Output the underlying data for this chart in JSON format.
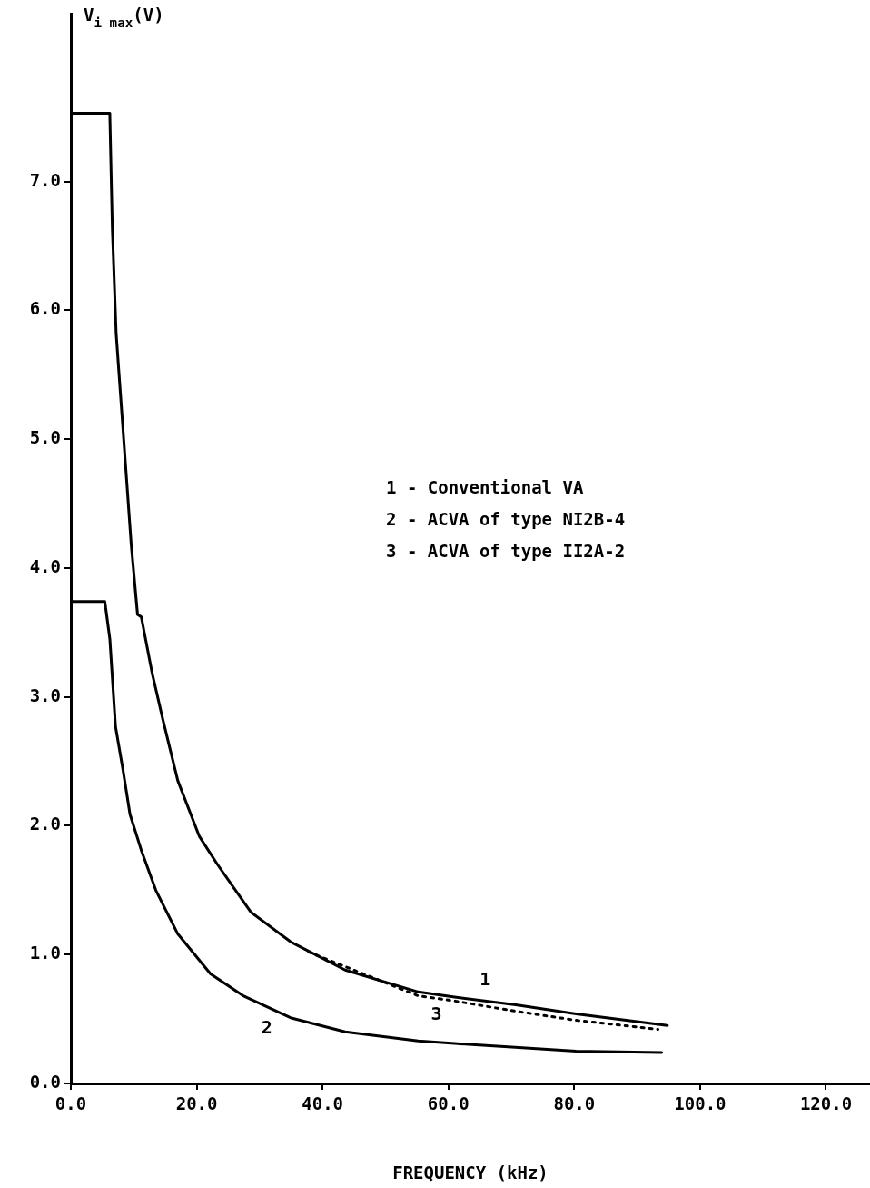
{
  "chart_data": {
    "type": "line",
    "xlabel": "FREQUENCY (kHz)",
    "ylabel": "V$_{i max}$(V)",
    "xlim": [
      0,
      127
    ],
    "xticks": [
      {
        "value": 0,
        "label": "0.0"
      },
      {
        "value": 20,
        "label": "20.0"
      },
      {
        "value": 40,
        "label": "40.0"
      },
      {
        "value": 60,
        "label": "60.0"
      },
      {
        "value": 80,
        "label": "80.0"
      },
      {
        "value": 100,
        "label": "100.0"
      },
      {
        "value": 120,
        "label": "120.0"
      }
    ],
    "ylim": [
      0,
      8.3
    ],
    "yticks": [
      {
        "value": 0,
        "label": "0.0"
      },
      {
        "value": 1,
        "label": "1.0"
      },
      {
        "value": 2,
        "label": "2.0"
      },
      {
        "value": 3,
        "label": "3.0"
      },
      {
        "value": 4,
        "label": "4.0"
      },
      {
        "value": 5,
        "label": "5.0"
      },
      {
        "value": 6,
        "label": "6.0"
      },
      {
        "value": 7,
        "label": "7.0"
      }
    ],
    "grid": false,
    "marker": "none",
    "series": [
      {
        "name": "1",
        "color": "#000000",
        "line_style": "solid",
        "x": [
          0,
          6.1,
          6.2,
          6.6,
          7.2,
          8.4,
          9.6,
          10.6,
          11.2,
          12.9,
          14.6,
          17.0,
          20.4,
          23.3,
          28.6,
          34.9,
          43.6,
          55.2,
          61.0,
          70.7,
          80.3,
          94.8
        ],
        "values": [
          7.53,
          7.53,
          7.51,
          6.63,
          5.82,
          5.0,
          4.18,
          3.64,
          3.62,
          3.19,
          2.83,
          2.35,
          1.92,
          1.7,
          1.33,
          1.1,
          0.88,
          0.71,
          0.67,
          0.61,
          0.54,
          0.45
        ]
      },
      {
        "name": "2",
        "color": "#000000",
        "line_style": "solid",
        "x": [
          0,
          5.4,
          6.2,
          7.1,
          8.3,
          9.4,
          11.2,
          13.5,
          17.0,
          22.2,
          27.4,
          34.9,
          43.6,
          55.2,
          61.0,
          80.3,
          93.9
        ],
        "values": [
          3.74,
          3.74,
          3.45,
          2.77,
          2.43,
          2.09,
          1.81,
          1.5,
          1.16,
          0.85,
          0.68,
          0.51,
          0.4,
          0.33,
          0.31,
          0.25,
          0.24
        ]
      },
      {
        "name": "3",
        "color": "#000000",
        "line_style": "dotted",
        "x": [
          37.8,
          46.5,
          55.2,
          61.0,
          70.7,
          80.3,
          93.3
        ],
        "values": [
          1.02,
          0.85,
          0.68,
          0.64,
          0.56,
          0.49,
          0.42
        ]
      }
    ],
    "annotations": [
      "1 - Conventional VA",
      "2 - ACVA of type NI2B-4",
      "3 - ACVA of type II2A-2"
    ]
  }
}
